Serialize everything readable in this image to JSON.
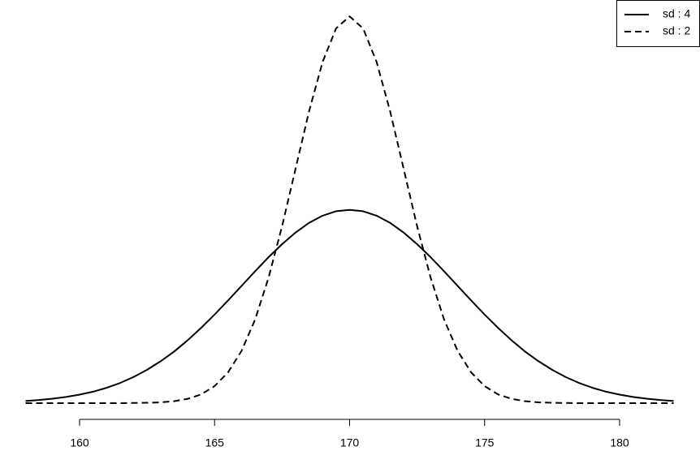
{
  "chart_data": {
    "type": "line",
    "x": [
      158,
      158.5,
      159,
      159.5,
      160,
      160.5,
      161,
      161.5,
      162,
      162.5,
      163,
      163.5,
      164,
      164.5,
      165,
      165.5,
      166,
      166.5,
      167,
      167.5,
      168,
      168.5,
      169,
      169.5,
      170,
      170.5,
      171,
      171.5,
      172,
      172.5,
      173,
      173.5,
      174,
      174.5,
      175,
      175.5,
      176,
      176.5,
      177,
      177.5,
      178,
      178.5,
      179,
      179.5,
      180,
      180.5,
      181,
      181.5,
      182
    ],
    "series": [
      {
        "name": "sd : 4",
        "color": "#000000",
        "linestyle": "solid",
        "values": [
          0.0011,
          0.0016,
          0.0023,
          0.0032,
          0.0044,
          0.0059,
          0.0079,
          0.0104,
          0.0135,
          0.0172,
          0.0216,
          0.0266,
          0.0324,
          0.0388,
          0.0457,
          0.053,
          0.0605,
          0.068,
          0.0753,
          0.082,
          0.088,
          0.093,
          0.0967,
          0.099,
          0.0997,
          0.099,
          0.0967,
          0.093,
          0.088,
          0.082,
          0.0753,
          0.068,
          0.0605,
          0.053,
          0.0457,
          0.0388,
          0.0324,
          0.0266,
          0.0216,
          0.0172,
          0.0135,
          0.0104,
          0.0079,
          0.0059,
          0.0044,
          0.0032,
          0.0023,
          0.0016,
          0.0011
        ]
      },
      {
        "name": "sd : 2",
        "color": "#000000",
        "linestyle": "dashed",
        "values": [
          0,
          0,
          0,
          0,
          0,
          0,
          0,
          0,
          0.0001,
          0.0002,
          0.0004,
          0.001,
          0.0022,
          0.0045,
          0.0088,
          0.0159,
          0.027,
          0.0431,
          0.0648,
          0.0913,
          0.121,
          0.1506,
          0.176,
          0.1933,
          0.1995,
          0.1933,
          0.176,
          0.1506,
          0.121,
          0.0913,
          0.0648,
          0.0431,
          0.027,
          0.0159,
          0.0088,
          0.0045,
          0.0022,
          0.001,
          0.0004,
          0.0002,
          0.0001,
          0,
          0,
          0,
          0,
          0,
          0,
          0,
          0
        ]
      }
    ],
    "xlim": [
      158,
      182
    ],
    "xticks": [
      160,
      165,
      170,
      175,
      180
    ],
    "ylim": [
      0,
      0.2
    ],
    "legend": "top-right",
    "grid": false
  }
}
